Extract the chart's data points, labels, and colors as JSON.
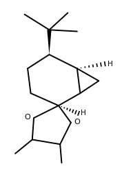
{
  "bg_color": "#ffffff",
  "line_color": "#000000",
  "line_width": 1.4,
  "label_H_top": "H",
  "label_H_bot": "H",
  "label_O1": "O",
  "label_O2": "O",
  "figsize": [
    1.9,
    2.48
  ],
  "dpi": 100
}
